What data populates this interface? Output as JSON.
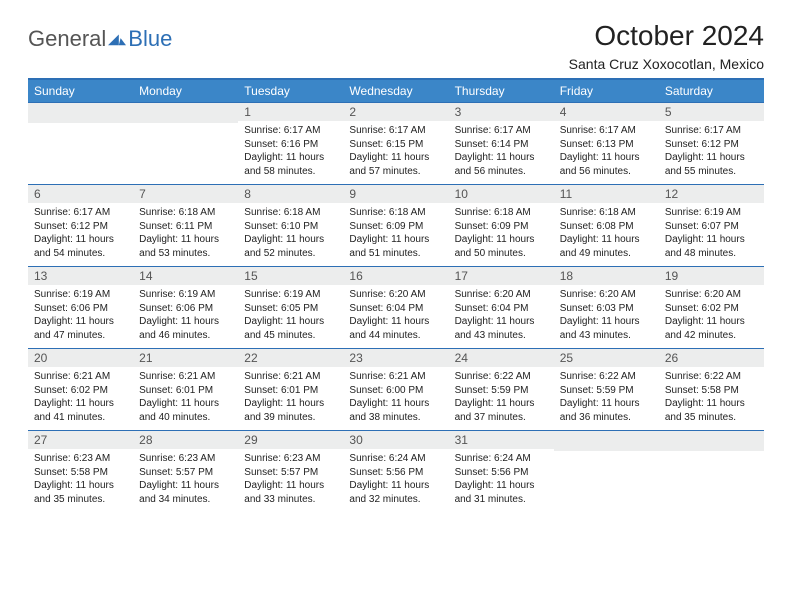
{
  "brand": {
    "part1": "General",
    "part2": "Blue"
  },
  "title": "October 2024",
  "location": "Santa Cruz Xoxocotlan, Mexico",
  "colors": {
    "accent": "#3b86c8",
    "rule": "#2d6fb5",
    "daybar": "#eceded"
  },
  "dayHeaders": [
    "Sunday",
    "Monday",
    "Tuesday",
    "Wednesday",
    "Thursday",
    "Friday",
    "Saturday"
  ],
  "weeks": [
    [
      {
        "n": "",
        "lines": []
      },
      {
        "n": "",
        "lines": []
      },
      {
        "n": "1",
        "lines": [
          "Sunrise: 6:17 AM",
          "Sunset: 6:16 PM",
          "Daylight: 11 hours and 58 minutes."
        ]
      },
      {
        "n": "2",
        "lines": [
          "Sunrise: 6:17 AM",
          "Sunset: 6:15 PM",
          "Daylight: 11 hours and 57 minutes."
        ]
      },
      {
        "n": "3",
        "lines": [
          "Sunrise: 6:17 AM",
          "Sunset: 6:14 PM",
          "Daylight: 11 hours and 56 minutes."
        ]
      },
      {
        "n": "4",
        "lines": [
          "Sunrise: 6:17 AM",
          "Sunset: 6:13 PM",
          "Daylight: 11 hours and 56 minutes."
        ]
      },
      {
        "n": "5",
        "lines": [
          "Sunrise: 6:17 AM",
          "Sunset: 6:12 PM",
          "Daylight: 11 hours and 55 minutes."
        ]
      }
    ],
    [
      {
        "n": "6",
        "lines": [
          "Sunrise: 6:17 AM",
          "Sunset: 6:12 PM",
          "Daylight: 11 hours and 54 minutes."
        ]
      },
      {
        "n": "7",
        "lines": [
          "Sunrise: 6:18 AM",
          "Sunset: 6:11 PM",
          "Daylight: 11 hours and 53 minutes."
        ]
      },
      {
        "n": "8",
        "lines": [
          "Sunrise: 6:18 AM",
          "Sunset: 6:10 PM",
          "Daylight: 11 hours and 52 minutes."
        ]
      },
      {
        "n": "9",
        "lines": [
          "Sunrise: 6:18 AM",
          "Sunset: 6:09 PM",
          "Daylight: 11 hours and 51 minutes."
        ]
      },
      {
        "n": "10",
        "lines": [
          "Sunrise: 6:18 AM",
          "Sunset: 6:09 PM",
          "Daylight: 11 hours and 50 minutes."
        ]
      },
      {
        "n": "11",
        "lines": [
          "Sunrise: 6:18 AM",
          "Sunset: 6:08 PM",
          "Daylight: 11 hours and 49 minutes."
        ]
      },
      {
        "n": "12",
        "lines": [
          "Sunrise: 6:19 AM",
          "Sunset: 6:07 PM",
          "Daylight: 11 hours and 48 minutes."
        ]
      }
    ],
    [
      {
        "n": "13",
        "lines": [
          "Sunrise: 6:19 AM",
          "Sunset: 6:06 PM",
          "Daylight: 11 hours and 47 minutes."
        ]
      },
      {
        "n": "14",
        "lines": [
          "Sunrise: 6:19 AM",
          "Sunset: 6:06 PM",
          "Daylight: 11 hours and 46 minutes."
        ]
      },
      {
        "n": "15",
        "lines": [
          "Sunrise: 6:19 AM",
          "Sunset: 6:05 PM",
          "Daylight: 11 hours and 45 minutes."
        ]
      },
      {
        "n": "16",
        "lines": [
          "Sunrise: 6:20 AM",
          "Sunset: 6:04 PM",
          "Daylight: 11 hours and 44 minutes."
        ]
      },
      {
        "n": "17",
        "lines": [
          "Sunrise: 6:20 AM",
          "Sunset: 6:04 PM",
          "Daylight: 11 hours and 43 minutes."
        ]
      },
      {
        "n": "18",
        "lines": [
          "Sunrise: 6:20 AM",
          "Sunset: 6:03 PM",
          "Daylight: 11 hours and 43 minutes."
        ]
      },
      {
        "n": "19",
        "lines": [
          "Sunrise: 6:20 AM",
          "Sunset: 6:02 PM",
          "Daylight: 11 hours and 42 minutes."
        ]
      }
    ],
    [
      {
        "n": "20",
        "lines": [
          "Sunrise: 6:21 AM",
          "Sunset: 6:02 PM",
          "Daylight: 11 hours and 41 minutes."
        ]
      },
      {
        "n": "21",
        "lines": [
          "Sunrise: 6:21 AM",
          "Sunset: 6:01 PM",
          "Daylight: 11 hours and 40 minutes."
        ]
      },
      {
        "n": "22",
        "lines": [
          "Sunrise: 6:21 AM",
          "Sunset: 6:01 PM",
          "Daylight: 11 hours and 39 minutes."
        ]
      },
      {
        "n": "23",
        "lines": [
          "Sunrise: 6:21 AM",
          "Sunset: 6:00 PM",
          "Daylight: 11 hours and 38 minutes."
        ]
      },
      {
        "n": "24",
        "lines": [
          "Sunrise: 6:22 AM",
          "Sunset: 5:59 PM",
          "Daylight: 11 hours and 37 minutes."
        ]
      },
      {
        "n": "25",
        "lines": [
          "Sunrise: 6:22 AM",
          "Sunset: 5:59 PM",
          "Daylight: 11 hours and 36 minutes."
        ]
      },
      {
        "n": "26",
        "lines": [
          "Sunrise: 6:22 AM",
          "Sunset: 5:58 PM",
          "Daylight: 11 hours and 35 minutes."
        ]
      }
    ],
    [
      {
        "n": "27",
        "lines": [
          "Sunrise: 6:23 AM",
          "Sunset: 5:58 PM",
          "Daylight: 11 hours and 35 minutes."
        ]
      },
      {
        "n": "28",
        "lines": [
          "Sunrise: 6:23 AM",
          "Sunset: 5:57 PM",
          "Daylight: 11 hours and 34 minutes."
        ]
      },
      {
        "n": "29",
        "lines": [
          "Sunrise: 6:23 AM",
          "Sunset: 5:57 PM",
          "Daylight: 11 hours and 33 minutes."
        ]
      },
      {
        "n": "30",
        "lines": [
          "Sunrise: 6:24 AM",
          "Sunset: 5:56 PM",
          "Daylight: 11 hours and 32 minutes."
        ]
      },
      {
        "n": "31",
        "lines": [
          "Sunrise: 6:24 AM",
          "Sunset: 5:56 PM",
          "Daylight: 11 hours and 31 minutes."
        ]
      },
      {
        "n": "",
        "lines": []
      },
      {
        "n": "",
        "lines": []
      }
    ]
  ]
}
